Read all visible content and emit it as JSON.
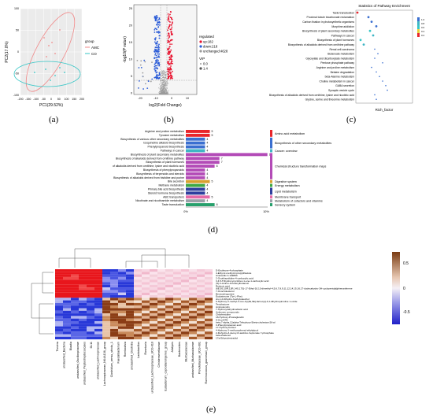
{
  "panel_labels": {
    "a": "(a)",
    "b": "(b)",
    "c": "(c)",
    "d": "(d)",
    "e": "(e)"
  },
  "colors": {
    "amc": "#f08a8a",
    "co": "#36c6c6",
    "up": "#e8112d",
    "down": "#2a5bd7",
    "unchanged": "#9a9a9a"
  },
  "pca": {
    "xlabel": "PC1(29.52%)",
    "ylabel": "PC2(17.0%)",
    "legend_title": "group",
    "legend": [
      "AMC",
      "CO"
    ],
    "xticks": [
      "-200",
      "-150",
      "-100",
      "-50",
      "0",
      "50",
      "100",
      "150",
      "200"
    ],
    "yticks": [
      "100",
      "50",
      "0",
      "-50",
      "-100"
    ]
  },
  "volcano": {
    "xlabel": "log2(Fold Change)",
    "ylabel": "-log10(P value)",
    "legend_title": "regulated",
    "legend_items": [
      "up:182",
      "down:218",
      "unchanged:4628"
    ],
    "vip_title": "VIP",
    "vip_items": [
      "0.0",
      "1.4"
    ],
    "xticks": [
      "-20",
      "-10",
      "0",
      "10"
    ],
    "yticks": [
      "25",
      "20",
      "15",
      "10",
      "5",
      "0"
    ]
  },
  "enrichment": {
    "title": "Statistics of Pathway Enrichment",
    "xlabel": "Rich_factor",
    "pathways": [
      "Taste transduction",
      "Proximal tubule bicarbonate reclamation",
      "Carbon fixation in photosynthetic organisms",
      "Morphine addiction",
      "Biosynthesis of plant secondary metabolites",
      "Pathways in cancer",
      "Biosynthesis of plant hormones",
      "Biosynthesis of alkaloids derived from ornithine pathway",
      "Renal cell carcinoma",
      "Butanoate metabolism",
      "Glyoxylate and dicarboxylate metabolism",
      "Pentose phosphate pathway",
      "Arginine and proline metabolism",
      "Betaine degradation",
      "beta-Alanine metabolism",
      "Choline metabolism in cancer",
      "GABA secretion",
      "Synaptic vesicle cycle",
      "Biosynthesis of alkaloids derived from ornithine, lysine and nicotinic acid",
      "Glycine, serine and threonine metabolism"
    ],
    "legend_labels": [
      "1.0",
      "0.8",
      "0.6",
      "0.4",
      "0.2"
    ]
  },
  "kegg": {
    "pathways": [
      "Arginine and proline metabolism",
      "Tyrosine metabolism",
      "Biosynthesis of various other secondary metabolites",
      "Isoquinoline alkaloid biosynthesis",
      "Phenylpropanoid biosynthesis",
      "Pathways in cancer",
      "Biosynthesis of plant secondary metabolites",
      "Biosynthesis of alkaloids derived from ornithine pathway",
      "Biosynthesis of plant hormones",
      "of alkaloids derived from ornithine, lysine and nicotinic acid",
      "Biosynthesis of phenylpropanoids",
      "Biosynthesis of terpenoids and steroids",
      "Biosynthesis of alkaloids derived from histidine and purine",
      "Bile secretion",
      "Methane metabolism",
      "Primary bile acid biosynthesis",
      "Steroid hormone biosynthesis",
      "ABC transporters",
      "Nicotinate and nicotinamide metabolism",
      "Taste transduction"
    ],
    "counts": [
      5,
      5,
      4,
      4,
      4,
      4,
      17,
      7,
      7,
      6,
      4,
      4,
      4,
      5,
      4,
      4,
      4,
      5,
      4,
      6
    ],
    "group_index": [
      0,
      0,
      1,
      1,
      1,
      2,
      3,
      3,
      3,
      3,
      3,
      3,
      3,
      4,
      5,
      6,
      6,
      7,
      8,
      9
    ],
    "groups": [
      "Amino acid metabolism",
      "Biosynthesis of other secondary metabolites",
      "Cancer: overview",
      "Chemical structure transformation maps",
      "Digestive system",
      "Energy metabolism",
      "Lipid metabolism",
      "Membrane transport",
      "Metabolism of cofactors and vitamins",
      "Sensory system"
    ],
    "group_colors": [
      "#e8262c",
      "#3a6fd0",
      "#3fb5c5",
      "#b34bb7",
      "#d9a12f",
      "#3ea844",
      "#2f3f9e",
      "#e56aa8",
      "#9aa0a8",
      "#27a06c"
    ],
    "xticks": [
      "0%",
      "10%"
    ]
  },
  "heatmap": {
    "row_labels": [
      "D-Erythrose-4-phosphate",
      "4-Ethyl-2-methyl-3-propylthiazole",
      "Anacardic A 14986C",
      "2-Oxothiazolidine-4-carboxylic acid",
      "3,4,5-Trihydroxycyclohex-1-ene-1-carboxylic acid",
      "(S)-2-Amino-4-butenylbutanoic",
      "Retinoic acid",
      "(6E,9S,10R,13R,14S,17S)-17-Ethyl-10,13-dimethyl-4,5,6,7,8,9,11,12,14,15,16,17-dodecahydro-3H-cyclopenta[a]phenanthrene",
      "7-Oxocholesterol",
      "Benzoylecgonine",
      "Ecdysterone (Tyr-L-Phe)",
      "cis-1,2-Dihydro-3-ethylcatechol",
      "6-Hydroxy-2-methyl-3-oxo-4-[(2E,6E)-farnesyl]-3,4-dihydroquinoline 1-oxide",
      "Testolactone",
      "Aminolevulin",
      "7-Hydroxydehydroabietic acid",
      "Unknown compounds",
      "Chlorhexidine",
      "18-Hydroxy-Prostaglandin",
      "9-Oxo-ETE",
      "beta,7-alpha,12alpha-Trihydroxy-5beta-cholestan-26-al",
      "3-Phenylpropanoic acid",
      "17-Hydroxycortisol",
      "4-Hydroxy-3-methoxyphenyl-ethylglycol",
      "2-Dehydro-3-deoxy-D-arabino-heptonate 7-phosphate",
      "beta-Zealenol",
      "17a-Ethynylestradiol"
    ],
    "col_labels": [
      "Tissiera",
      "unclassified_Bacteria",
      "Blautia",
      "unclassified_Oscillospiraceae",
      "unclassified_Peptostreptococcales",
      "DL11",
      "unclassified_Lachnospiraceae",
      "Lachnospiraceae_NK4A136_group",
      "Clostridium_sensu_stricto_1",
      "Faecalibacterium",
      "Romboutsia",
      "unclassified_Clostridia",
      "Lactobacillus",
      "Roseburia",
      "unclassified_Lachnospiraceae_UCG-010",
      "Christensenellaceae",
      "Eubacterium_coprostanoligenes_group",
      "Alistipes",
      "Bacteroides",
      "Muribaculaceae",
      "unclassified_Muribaculaceae",
      "Prevotellaceae_UCG-001",
      "Ruminococcus_gauvreauii_group"
    ],
    "scale_labels": [
      "0.5",
      "0",
      "-0.5"
    ]
  }
}
